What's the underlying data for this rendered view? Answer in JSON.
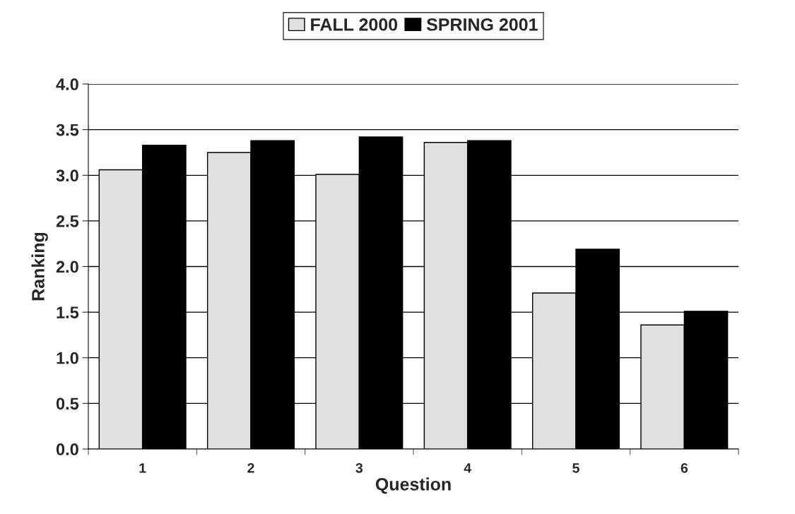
{
  "chart_data": {
    "type": "bar",
    "xlabel": "Question",
    "ylabel": "Ranking",
    "categories": [
      "1",
      "2",
      "3",
      "4",
      "5",
      "6"
    ],
    "series": [
      {
        "name": "FALL 2000",
        "color": "#e0e0e0",
        "values": [
          3.06,
          3.25,
          3.01,
          3.36,
          1.71,
          1.36
        ]
      },
      {
        "name": "SPRING 2001",
        "color": "#000000",
        "values": [
          3.33,
          3.38,
          3.42,
          3.38,
          2.19,
          1.51
        ]
      }
    ],
    "ylim": [
      0,
      4
    ],
    "yticks": [
      {
        "value": 0,
        "label": "0.0"
      },
      {
        "value": 0.5,
        "label": "0.5"
      },
      {
        "value": 1,
        "label": "1.0"
      },
      {
        "value": 1.5,
        "label": "1.5"
      },
      {
        "value": 2,
        "label": "2.0"
      },
      {
        "value": 2.5,
        "label": "2.5"
      },
      {
        "value": 3,
        "label": "3.0"
      },
      {
        "value": 3.5,
        "label": "3.5"
      },
      {
        "value": 4,
        "label": "4.0"
      }
    ],
    "grid": "y",
    "legend": "top"
  }
}
